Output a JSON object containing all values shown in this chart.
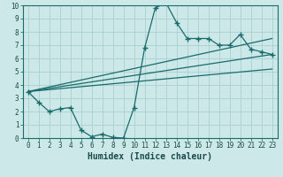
{
  "xlabel": "Humidex (Indice chaleur)",
  "bg_color": "#cce8e8",
  "grid_color": "#aacfcf",
  "line_color": "#1a6b6b",
  "xlim": [
    -0.5,
    23.5
  ],
  "ylim": [
    0,
    10
  ],
  "xticks": [
    0,
    1,
    2,
    3,
    4,
    5,
    6,
    7,
    8,
    9,
    10,
    11,
    12,
    13,
    14,
    15,
    16,
    17,
    18,
    19,
    20,
    21,
    22,
    23
  ],
  "yticks": [
    0,
    1,
    2,
    3,
    4,
    5,
    6,
    7,
    8,
    9,
    10
  ],
  "curve1_x": [
    0,
    1,
    2,
    3,
    4,
    5,
    6,
    7,
    8,
    9,
    10,
    11,
    12,
    13,
    14,
    15,
    16,
    17,
    18,
    19,
    20,
    21,
    22,
    23
  ],
  "curve1_y": [
    3.5,
    2.7,
    2.0,
    2.2,
    2.3,
    0.6,
    0.1,
    0.3,
    0.05,
    0.0,
    2.3,
    6.8,
    9.8,
    10.2,
    8.7,
    7.5,
    7.5,
    7.5,
    7.0,
    7.0,
    7.8,
    6.7,
    6.5,
    6.3
  ],
  "line2_x": [
    0,
    23
  ],
  "line2_y": [
    3.5,
    6.3
  ],
  "line3_x": [
    0,
    23
  ],
  "line3_y": [
    3.5,
    7.5
  ],
  "line4_x": [
    0,
    23
  ],
  "line4_y": [
    3.5,
    5.2
  ]
}
